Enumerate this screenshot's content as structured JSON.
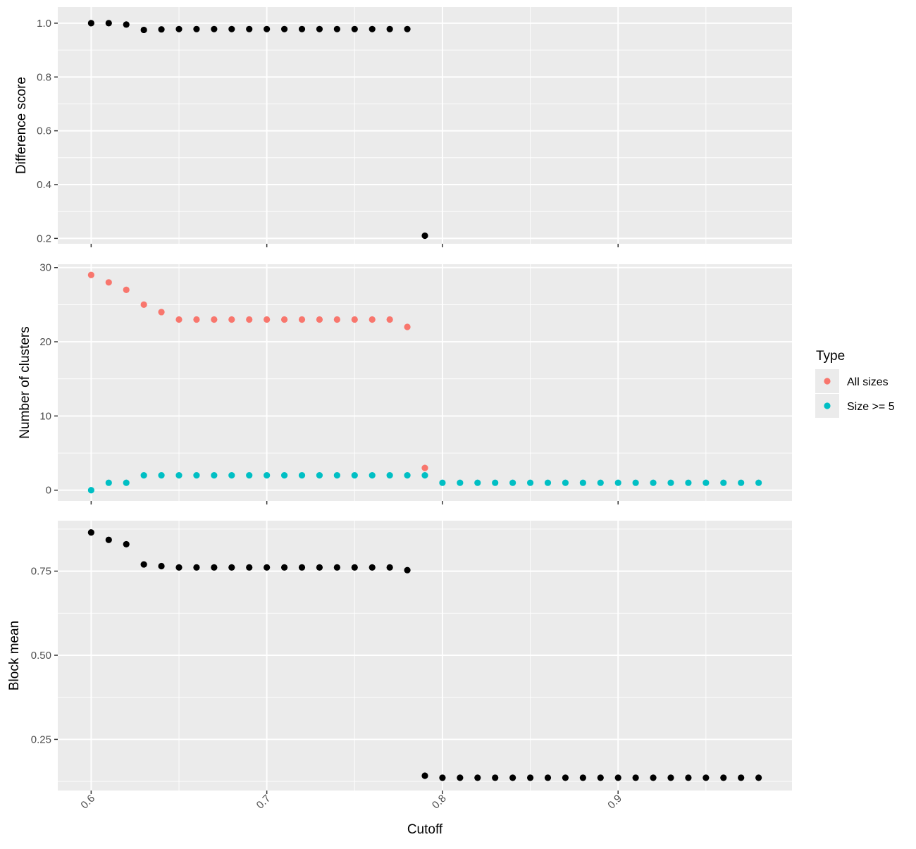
{
  "chart_data": [
    {
      "type": "scatter",
      "panel": "top",
      "ylabel": "Difference score",
      "ylim": [
        0.18,
        1.06
      ],
      "yticks": [
        0.2,
        0.4,
        0.6,
        0.8,
        1.0
      ],
      "ytick_labels": [
        "0.2",
        "0.4",
        "0.6",
        "0.8",
        "1.0"
      ],
      "grid": true,
      "series": [
        {
          "color": "#000000",
          "x": [
            0.6,
            0.61,
            0.62,
            0.63,
            0.64,
            0.65,
            0.66,
            0.67,
            0.68,
            0.69,
            0.7,
            0.71,
            0.72,
            0.73,
            0.74,
            0.75,
            0.76,
            0.77,
            0.78,
            0.79
          ],
          "y": [
            1.0,
            1.0,
            0.995,
            0.975,
            0.977,
            0.978,
            0.978,
            0.978,
            0.978,
            0.978,
            0.978,
            0.978,
            0.978,
            0.978,
            0.978,
            0.978,
            0.978,
            0.978,
            0.978,
            0.21
          ]
        }
      ]
    },
    {
      "type": "scatter",
      "panel": "middle",
      "ylabel": "Number of clusters",
      "ylim": [
        -1.45,
        30.45
      ],
      "yticks": [
        0,
        10,
        20,
        30
      ],
      "ytick_labels": [
        "0",
        "10",
        "20",
        "30"
      ],
      "grid": true,
      "series": [
        {
          "name": "All sizes",
          "color": "#F8766D",
          "x": [
            0.6,
            0.61,
            0.62,
            0.63,
            0.64,
            0.65,
            0.66,
            0.67,
            0.68,
            0.69,
            0.7,
            0.71,
            0.72,
            0.73,
            0.74,
            0.75,
            0.76,
            0.77,
            0.78,
            0.79
          ],
          "y": [
            29,
            28,
            27,
            25,
            24,
            23,
            23,
            23,
            23,
            23,
            23,
            23,
            23,
            23,
            23,
            23,
            23,
            23,
            22,
            3
          ]
        },
        {
          "name": "Size >= 5",
          "color": "#00BFC4",
          "x": [
            0.6,
            0.61,
            0.62,
            0.63,
            0.64,
            0.65,
            0.66,
            0.67,
            0.68,
            0.69,
            0.7,
            0.71,
            0.72,
            0.73,
            0.74,
            0.75,
            0.76,
            0.77,
            0.78,
            0.79,
            0.8,
            0.81,
            0.82,
            0.83,
            0.84,
            0.85,
            0.86,
            0.87,
            0.88,
            0.89,
            0.9,
            0.91,
            0.92,
            0.93,
            0.94,
            0.95,
            0.96,
            0.97,
            0.98
          ],
          "y": [
            0,
            1,
            1,
            2,
            2,
            2,
            2,
            2,
            2,
            2,
            2,
            2,
            2,
            2,
            2,
            2,
            2,
            2,
            2,
            2,
            1,
            1,
            1,
            1,
            1,
            1,
            1,
            1,
            1,
            1,
            1,
            1,
            1,
            1,
            1,
            1,
            1,
            1,
            1
          ]
        }
      ]
    },
    {
      "type": "scatter",
      "panel": "bottom",
      "xlabel": "Cutoff",
      "ylabel": "Block mean",
      "ylim": [
        0.098,
        0.9
      ],
      "yticks": [
        0.25,
        0.5,
        0.75
      ],
      "ytick_labels": [
        "0.25",
        "0.50",
        "0.75"
      ],
      "grid": true,
      "series": [
        {
          "color": "#000000",
          "x": [
            0.6,
            0.61,
            0.62,
            0.63,
            0.64,
            0.65,
            0.66,
            0.67,
            0.68,
            0.69,
            0.7,
            0.71,
            0.72,
            0.73,
            0.74,
            0.75,
            0.76,
            0.77,
            0.78,
            0.79,
            0.8,
            0.81,
            0.82,
            0.83,
            0.84,
            0.85,
            0.86,
            0.87,
            0.88,
            0.89,
            0.9,
            0.91,
            0.92,
            0.93,
            0.94,
            0.95,
            0.96,
            0.97,
            0.98
          ],
          "y": [
            0.865,
            0.843,
            0.83,
            0.77,
            0.765,
            0.761,
            0.761,
            0.761,
            0.761,
            0.761,
            0.761,
            0.761,
            0.761,
            0.761,
            0.761,
            0.761,
            0.761,
            0.761,
            0.753,
            0.142,
            0.136,
            0.136,
            0.136,
            0.136,
            0.136,
            0.136,
            0.136,
            0.136,
            0.136,
            0.136,
            0.136,
            0.136,
            0.136,
            0.136,
            0.136,
            0.136,
            0.136,
            0.136,
            0.136
          ]
        }
      ]
    }
  ],
  "x_axis": {
    "xlabel": "Cutoff",
    "xlim": [
      0.581,
      0.999
    ],
    "xticks": [
      0.6,
      0.7,
      0.8,
      0.9
    ],
    "xtick_labels": [
      "0.6",
      "0.7",
      "0.8",
      "0.9"
    ]
  },
  "legend": {
    "title": "Type",
    "placement": "right",
    "entries": [
      {
        "label": "All sizes",
        "color": "#F8766D"
      },
      {
        "label": "Size >= 5",
        "color": "#00BFC4"
      }
    ]
  },
  "theme": {
    "panel_background": "#EBEBEB",
    "grid_color": "#FFFFFF",
    "tick_text_color": "#4D4D4D",
    "point_black": "#000000"
  }
}
